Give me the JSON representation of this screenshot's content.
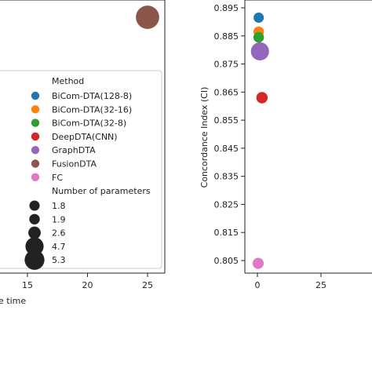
{
  "chart_data": [
    {
      "type": "scatter",
      "xlabel": "e time",
      "x_ticks": [
        "15",
        "20",
        "25"
      ],
      "points": [
        {
          "series": "FusionDTA",
          "x": 25,
          "color": "#8c564b",
          "size": 5.3
        }
      ],
      "legend": {
        "title": "Method",
        "entries": [
          {
            "label": "BiCom-DTA(128-8)",
            "color": "#1f77b4"
          },
          {
            "label": "BiCom-DTA(32-16)",
            "color": "#ff7f0e"
          },
          {
            "label": "BiCom-DTA(32-8)",
            "color": "#2ca02c"
          },
          {
            "label": "DeepDTA(CNN)",
            "color": "#d62728"
          },
          {
            "label": "GraphDTA",
            "color": "#9467bd"
          },
          {
            "label": "FusionDTA",
            "color": "#8c564b"
          },
          {
            "label": "FC",
            "color": "#e377c2"
          }
        ],
        "size_title": "Number of parameters",
        "sizes": [
          "1.8",
          "1.9",
          "2.6",
          "4.7",
          "5.3"
        ]
      }
    },
    {
      "type": "scatter",
      "ylabel": "Concordance Index (CI)",
      "ylim": [
        0.8,
        0.9
      ],
      "y_ticks": [
        "0.895",
        "0.885",
        "0.875",
        "0.865",
        "0.855",
        "0.845",
        "0.835",
        "0.825",
        "0.815",
        "0.805"
      ],
      "x_ticks": [
        "0",
        "25"
      ],
      "points": [
        {
          "series": "BiCom-DTA(128-8)",
          "x": 0.5,
          "y": 0.8915,
          "color": "#1f77b4",
          "size": 1.8
        },
        {
          "series": "BiCom-DTA(32-16)",
          "x": 0.5,
          "y": 0.8865,
          "color": "#ff7f0e",
          "size": 1.9
        },
        {
          "series": "BiCom-DTA(32-8)",
          "x": 0.5,
          "y": 0.8845,
          "color": "#2ca02c",
          "size": 1.9
        },
        {
          "series": "GraphDTA",
          "x": 1.0,
          "y": 0.8795,
          "color": "#9467bd",
          "size": 4.7
        },
        {
          "series": "DeepDTA(CNN)",
          "x": 1.8,
          "y": 0.863,
          "color": "#d62728",
          "size": 2.2
        },
        {
          "series": "FC",
          "x": 0.3,
          "y": 0.804,
          "color": "#e377c2",
          "size": 2.1
        }
      ]
    }
  ]
}
